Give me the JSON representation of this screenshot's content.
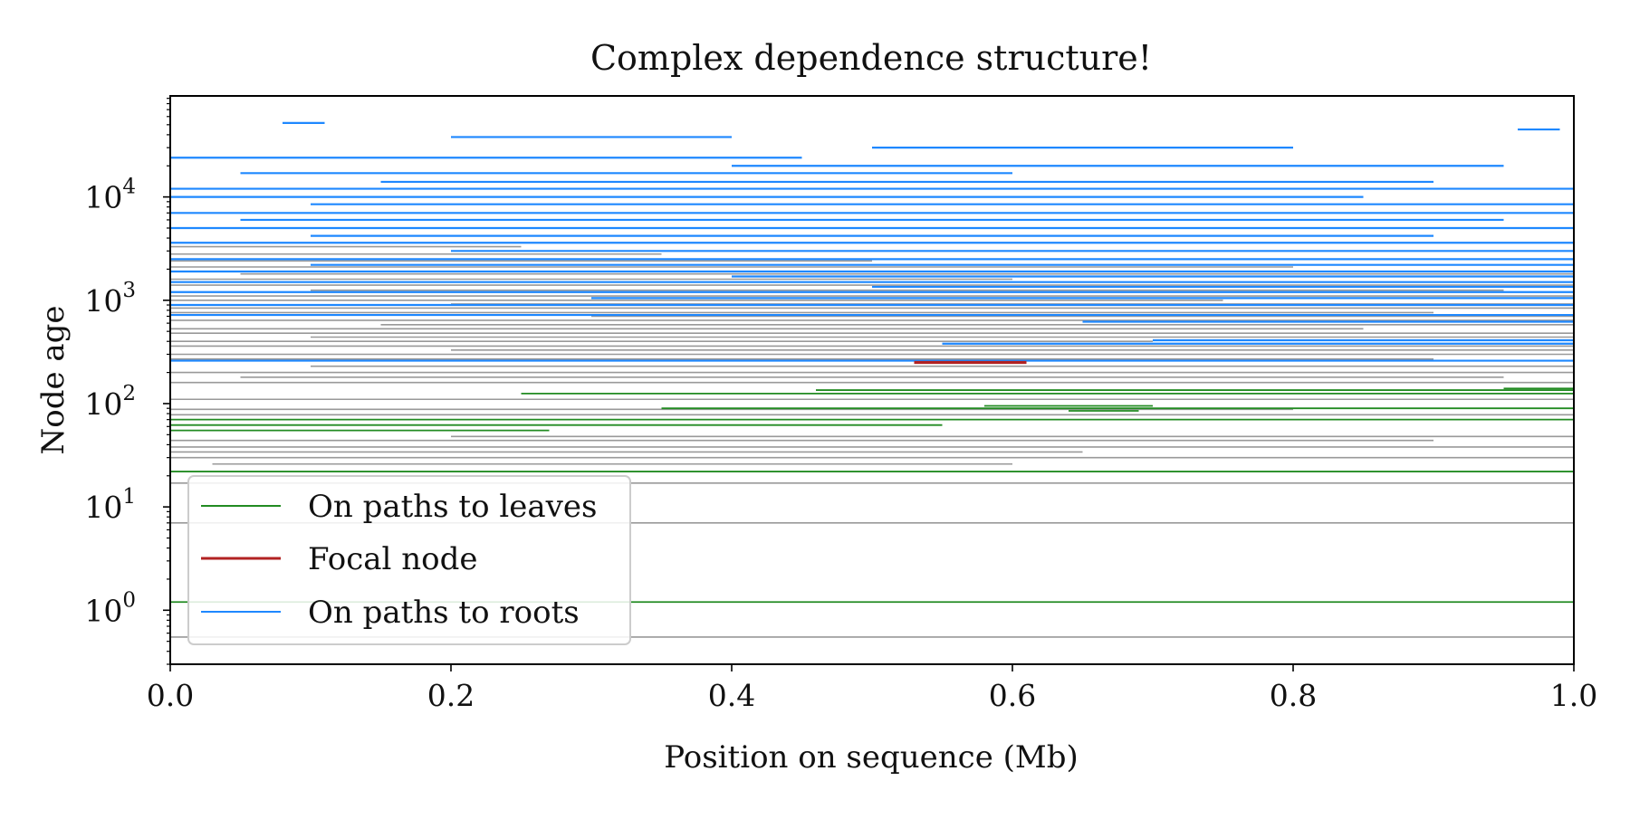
{
  "chart_data": {
    "type": "line",
    "title": "Complex dependence structure!",
    "xlabel": "Position on sequence (Mb)",
    "ylabel": "Node age",
    "x_scale": "linear",
    "y_scale": "log",
    "xlim": [
      0.0,
      1.0
    ],
    "ylim": [
      0.3,
      95000
    ],
    "x_ticks": [
      "0.0",
      "0.2",
      "0.4",
      "0.6",
      "0.8",
      "1.0"
    ],
    "y_ticks": [
      {
        "base": "10",
        "exp": "0"
      },
      {
        "base": "10",
        "exp": "1"
      },
      {
        "base": "10",
        "exp": "2"
      },
      {
        "base": "10",
        "exp": "3"
      },
      {
        "base": "10",
        "exp": "4"
      }
    ],
    "grid": false,
    "legend_position": "lower-left",
    "colors": {
      "leaves": "#228b22",
      "focal": "#b22222",
      "roots": "#1e88ff",
      "other": "#999999"
    },
    "legend": [
      {
        "label": "On paths to leaves",
        "color": "#228b22"
      },
      {
        "label": "Focal node",
        "color": "#b22222"
      },
      {
        "label": "On paths to roots",
        "color": "#1e88ff"
      }
    ],
    "segments": {
      "focal": [
        {
          "age": 250,
          "start": 0.53,
          "end": 0.61
        }
      ],
      "leaves": [
        {
          "age": 1.2,
          "start": 0.0,
          "end": 1.0
        },
        {
          "age": 22,
          "start": 0.0,
          "end": 1.0
        },
        {
          "age": 55,
          "start": 0.0,
          "end": 0.27
        },
        {
          "age": 62,
          "start": 0.0,
          "end": 0.55
        },
        {
          "age": 70,
          "start": 0.0,
          "end": 1.0
        },
        {
          "age": 85,
          "start": 0.64,
          "end": 0.69
        },
        {
          "age": 90,
          "start": 0.35,
          "end": 1.0
        },
        {
          "age": 95,
          "start": 0.58,
          "end": 0.7
        },
        {
          "age": 125,
          "start": 0.25,
          "end": 1.0
        },
        {
          "age": 135,
          "start": 0.46,
          "end": 1.0
        },
        {
          "age": 140,
          "start": 0.95,
          "end": 1.0
        }
      ],
      "other": [
        {
          "age": 0.55,
          "start": 0.0,
          "end": 1.0
        },
        {
          "age": 7,
          "start": 0.0,
          "end": 1.0
        },
        {
          "age": 17,
          "start": 0.0,
          "end": 1.0
        },
        {
          "age": 26,
          "start": 0.03,
          "end": 0.6
        },
        {
          "age": 30,
          "start": 0.0,
          "end": 1.0
        },
        {
          "age": 34,
          "start": 0.0,
          "end": 0.65
        },
        {
          "age": 38,
          "start": 0.0,
          "end": 1.0
        },
        {
          "age": 44,
          "start": 0.0,
          "end": 0.9
        },
        {
          "age": 48,
          "start": 0.2,
          "end": 1.0
        },
        {
          "age": 78,
          "start": 0.0,
          "end": 1.0
        },
        {
          "age": 88,
          "start": 0.0,
          "end": 0.8
        },
        {
          "age": 110,
          "start": 0.0,
          "end": 1.0
        },
        {
          "age": 160,
          "start": 0.0,
          "end": 1.0
        },
        {
          "age": 180,
          "start": 0.05,
          "end": 0.95
        },
        {
          "age": 200,
          "start": 0.0,
          "end": 1.0
        },
        {
          "age": 230,
          "start": 0.1,
          "end": 1.0
        },
        {
          "age": 270,
          "start": 0.0,
          "end": 0.9
        },
        {
          "age": 300,
          "start": 0.0,
          "end": 1.0
        },
        {
          "age": 330,
          "start": 0.2,
          "end": 1.0
        },
        {
          "age": 360,
          "start": 0.0,
          "end": 1.0
        },
        {
          "age": 400,
          "start": 0.0,
          "end": 0.7
        },
        {
          "age": 440,
          "start": 0.1,
          "end": 1.0
        },
        {
          "age": 480,
          "start": 0.0,
          "end": 1.0
        },
        {
          "age": 530,
          "start": 0.0,
          "end": 0.85
        },
        {
          "age": 580,
          "start": 0.15,
          "end": 1.0
        },
        {
          "age": 640,
          "start": 0.0,
          "end": 1.0
        },
        {
          "age": 700,
          "start": 0.3,
          "end": 1.0
        },
        {
          "age": 760,
          "start": 0.0,
          "end": 0.9
        },
        {
          "age": 840,
          "start": 0.0,
          "end": 1.0
        },
        {
          "age": 920,
          "start": 0.2,
          "end": 1.0
        },
        {
          "age": 1000,
          "start": 0.0,
          "end": 0.75
        },
        {
          "age": 1100,
          "start": 0.0,
          "end": 1.0
        },
        {
          "age": 1250,
          "start": 0.1,
          "end": 0.95
        },
        {
          "age": 1400,
          "start": 0.0,
          "end": 1.0
        },
        {
          "age": 1600,
          "start": 0.0,
          "end": 0.6
        },
        {
          "age": 1800,
          "start": 0.05,
          "end": 1.0
        },
        {
          "age": 2100,
          "start": 0.0,
          "end": 0.8
        },
        {
          "age": 2400,
          "start": 0.0,
          "end": 0.5
        },
        {
          "age": 2800,
          "start": 0.0,
          "end": 0.35
        },
        {
          "age": 3300,
          "start": 0.0,
          "end": 0.25
        }
      ],
      "roots": [
        {
          "age": 260,
          "start": 0.0,
          "end": 1.0
        },
        {
          "age": 380,
          "start": 0.55,
          "end": 1.0
        },
        {
          "age": 410,
          "start": 0.7,
          "end": 1.0
        },
        {
          "age": 620,
          "start": 0.65,
          "end": 1.0
        },
        {
          "age": 720,
          "start": 0.0,
          "end": 1.0
        },
        {
          "age": 900,
          "start": 0.0,
          "end": 1.0
        },
        {
          "age": 1050,
          "start": 0.3,
          "end": 1.0
        },
        {
          "age": 1200,
          "start": 0.0,
          "end": 1.0
        },
        {
          "age": 1350,
          "start": 0.5,
          "end": 1.0
        },
        {
          "age": 1500,
          "start": 0.0,
          "end": 1.0
        },
        {
          "age": 1700,
          "start": 0.4,
          "end": 1.0
        },
        {
          "age": 1900,
          "start": 0.0,
          "end": 1.0
        },
        {
          "age": 2200,
          "start": 0.1,
          "end": 1.0
        },
        {
          "age": 2500,
          "start": 0.0,
          "end": 1.0
        },
        {
          "age": 3000,
          "start": 0.2,
          "end": 1.0
        },
        {
          "age": 3600,
          "start": 0.0,
          "end": 1.0
        },
        {
          "age": 4200,
          "start": 0.1,
          "end": 0.9
        },
        {
          "age": 5000,
          "start": 0.0,
          "end": 1.0
        },
        {
          "age": 6000,
          "start": 0.05,
          "end": 0.95
        },
        {
          "age": 7000,
          "start": 0.0,
          "end": 1.0
        },
        {
          "age": 8500,
          "start": 0.1,
          "end": 1.0
        },
        {
          "age": 10000,
          "start": 0.0,
          "end": 0.85
        },
        {
          "age": 12000,
          "start": 0.0,
          "end": 1.0
        },
        {
          "age": 14000,
          "start": 0.15,
          "end": 0.9
        },
        {
          "age": 17000,
          "start": 0.05,
          "end": 0.6
        },
        {
          "age": 20000,
          "start": 0.4,
          "end": 0.95
        },
        {
          "age": 24000,
          "start": 0.0,
          "end": 0.45
        },
        {
          "age": 30000,
          "start": 0.5,
          "end": 0.8
        },
        {
          "age": 38000,
          "start": 0.2,
          "end": 0.4
        },
        {
          "age": 45000,
          "start": 0.96,
          "end": 0.99
        },
        {
          "age": 52000,
          "start": 0.08,
          "end": 0.11
        }
      ]
    }
  }
}
